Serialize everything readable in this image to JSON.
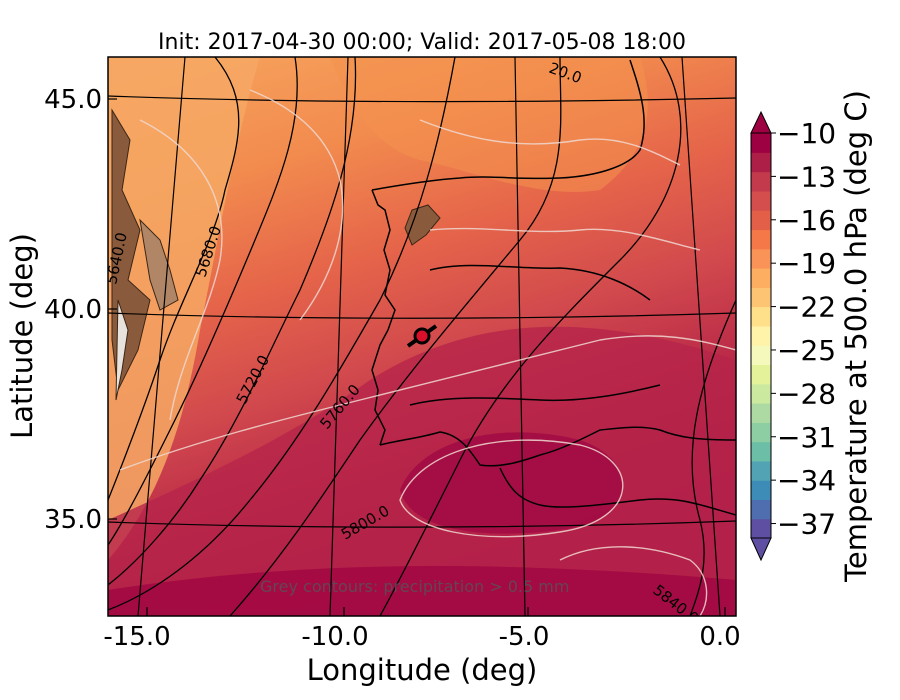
{
  "title": "Init: 2017-04-30 00:00; Valid: 2017-05-08 18:00",
  "x_axis": {
    "label": "Longitude (deg)",
    "ticks": [
      "-15.0",
      "-10.0",
      "-5.0",
      "0.0"
    ],
    "range": [
      -15.9,
      0.2
    ]
  },
  "y_axis": {
    "label": "Latitude (deg)",
    "ticks": [
      "35.0",
      "40.0",
      "45.0"
    ],
    "range": [
      32.5,
      46.0
    ]
  },
  "colorbar": {
    "label": "Temperature at 500.0 hPa (deg C)",
    "ticks": [
      "−10",
      "−13",
      "−16",
      "−19",
      "−22",
      "−25",
      "−28",
      "−31",
      "−34",
      "−37"
    ],
    "min": -38,
    "max": -10,
    "colors": [
      "#5e4fa2",
      "#4e6eb0",
      "#3d8cb8",
      "#52a4b4",
      "#6cbfa6",
      "#8dcea3",
      "#add9a3",
      "#cce9a0",
      "#e4f39a",
      "#f5fabc",
      "#fef3a8",
      "#fee08b",
      "#fdc474",
      "#fdae61",
      "#f99357",
      "#f47848",
      "#e35f47",
      "#d54e4e",
      "#c23a4b",
      "#ad1f47",
      "#9e0142"
    ]
  },
  "contour_labels": [
    "20.0",
    "5640.0",
    "5680.0",
    "5720.0",
    "5760.0",
    "5800.0",
    "5840.0"
  ],
  "note": "Grey contours: precipitation > 0.5 mm",
  "marker": {
    "lon": -7.6,
    "lat": 39.3,
    "color": "#d90f2c"
  },
  "colors": {
    "ocean_warm": "#e0584d",
    "ocean_hot": "#ac1247",
    "north_orange": "#f5a45d",
    "terrain": "#8a5a3c"
  }
}
